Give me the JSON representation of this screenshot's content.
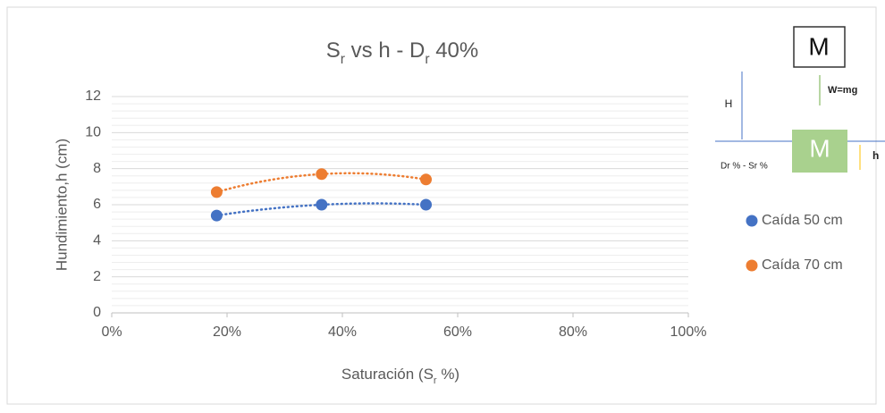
{
  "chart_data": {
    "type": "scatter",
    "title": [
      {
        "text": "S"
      },
      {
        "text": "r",
        "sub": true
      },
      {
        "text": " vs h - D"
      },
      {
        "text": "r",
        "sub": true
      },
      {
        "text": " 40%"
      }
    ],
    "x_label": [
      {
        "text": "Saturación (S"
      },
      {
        "text": "r",
        "sub": true
      },
      {
        "text": " %)"
      }
    ],
    "y_label": "Hundimiento,h (cm)",
    "xlim": [
      0,
      100
    ],
    "xticks": [
      {
        "value": 0,
        "label": "0%"
      },
      {
        "value": 20,
        "label": "20%"
      },
      {
        "value": 40,
        "label": "40%"
      },
      {
        "value": 60,
        "label": "60%"
      },
      {
        "value": 80,
        "label": "80%"
      },
      {
        "value": 100,
        "label": "100%"
      }
    ],
    "ylim": [
      0,
      12
    ],
    "yticks": [
      0,
      2,
      4,
      6,
      8,
      10,
      12
    ],
    "grid": true,
    "trendline": "polynomial",
    "series": [
      {
        "name": "Caída 50 cm",
        "color": "#4472c4",
        "x": [
          18.2,
          36.4,
          54.5
        ],
        "values": [
          5.4,
          6.0,
          6.0
        ]
      },
      {
        "name": "Caída 70 cm",
        "color": "#ed7d31",
        "x": [
          18.2,
          36.4,
          54.5
        ],
        "values": [
          6.7,
          7.7,
          7.4
        ]
      }
    ]
  },
  "diagram": {
    "mass_top": "M",
    "weight": "W=mg",
    "height": "H",
    "mass_bottom": "M",
    "depth": "h",
    "caption": "Dr % - Sr %"
  }
}
